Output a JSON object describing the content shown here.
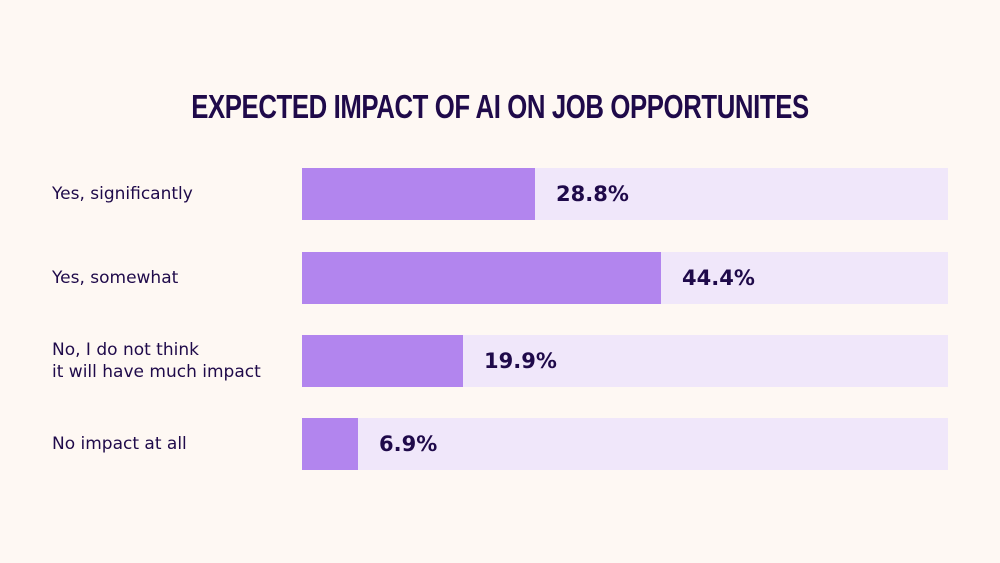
{
  "chart_data": {
    "type": "bar",
    "orientation": "horizontal",
    "title": "EXPECTED IMPACT OF AI ON JOB OPPORTUNITES",
    "categories": [
      "Yes, significantly",
      "Yes, somewhat",
      "No, I do not think\nit will have much impact",
      "No impact at all"
    ],
    "values": [
      28.8,
      44.4,
      19.9,
      6.9
    ],
    "value_labels": [
      "28.8%",
      "44.4%",
      "19.9%",
      "6.9%"
    ],
    "xlim": [
      0,
      80
    ],
    "grid": false,
    "colors": {
      "bar": "#B285EE",
      "track": "#F0E7FA",
      "text": "#1F0A4A",
      "background": "#FEF8F3"
    }
  }
}
